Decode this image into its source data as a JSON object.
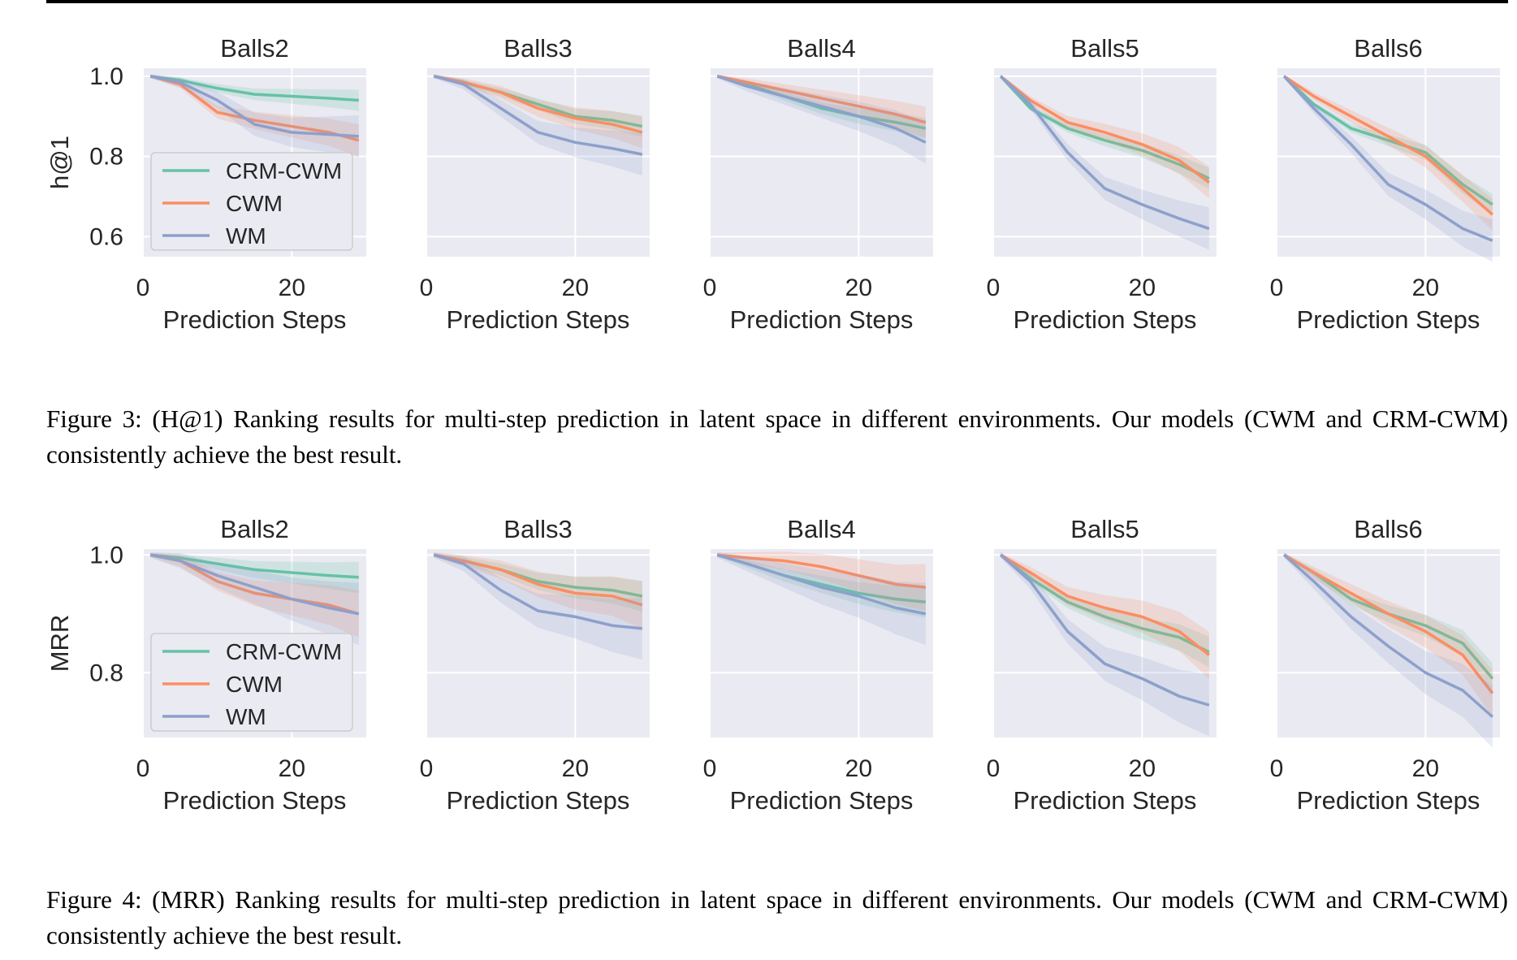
{
  "figures": [
    {
      "ylabel": "h@1",
      "caption": "Figure 3: (H@1) Ranking results for multi-step prediction in latent space in different environments. Our models (CWM and CRM-CWM) consistently achieve the best result."
    },
    {
      "ylabel": "MRR",
      "caption": "Figure 4: (MRR) Ranking results for multi-step prediction in latent space in different environments. Our models (CWM and CRM-CWM) consistently achieve the best result."
    }
  ],
  "colors": {
    "CRM-CWM": "#66c2a5",
    "CWM": "#fc8d62",
    "WM": "#8da0cb",
    "panel_bg": "#eaeaf2"
  },
  "chart_data": [
    {
      "type": "line",
      "ylabel": "h@1",
      "xlabel": "Prediction Steps",
      "xticks": [
        0,
        20
      ],
      "yticks": [
        0.6,
        0.8,
        1.0
      ],
      "xlim": [
        0,
        30
      ],
      "ylim": [
        0.55,
        1.02
      ],
      "grid": true,
      "legend": {
        "placement": "lower-left",
        "panel": 0,
        "entries": [
          "CRM-CWM",
          "CWM",
          "WM"
        ]
      },
      "panels": [
        {
          "title": "Balls2",
          "x": [
            1,
            5,
            10,
            15,
            20,
            25,
            29
          ],
          "series": [
            {
              "name": "CRM-CWM",
              "values": [
                1.0,
                0.99,
                0.97,
                0.955,
                0.95,
                0.945,
                0.94
              ]
            },
            {
              "name": "CWM",
              "values": [
                1.0,
                0.98,
                0.91,
                0.89,
                0.875,
                0.86,
                0.84
              ]
            },
            {
              "name": "WM",
              "values": [
                1.0,
                0.985,
                0.94,
                0.88,
                0.86,
                0.855,
                0.85
              ]
            }
          ]
        },
        {
          "title": "Balls3",
          "x": [
            1,
            5,
            10,
            15,
            20,
            25,
            29
          ],
          "series": [
            {
              "name": "CRM-CWM",
              "values": [
                1.0,
                0.985,
                0.96,
                0.93,
                0.9,
                0.89,
                0.875
              ]
            },
            {
              "name": "CWM",
              "values": [
                1.0,
                0.985,
                0.96,
                0.92,
                0.895,
                0.88,
                0.86
              ]
            },
            {
              "name": "WM",
              "values": [
                1.0,
                0.98,
                0.92,
                0.86,
                0.835,
                0.82,
                0.805
              ]
            }
          ]
        },
        {
          "title": "Balls4",
          "x": [
            1,
            5,
            10,
            15,
            20,
            25,
            29
          ],
          "series": [
            {
              "name": "CRM-CWM",
              "values": [
                1.0,
                0.98,
                0.95,
                0.92,
                0.9,
                0.885,
                0.87
              ]
            },
            {
              "name": "CWM",
              "values": [
                1.0,
                0.985,
                0.965,
                0.945,
                0.925,
                0.905,
                0.885
              ]
            },
            {
              "name": "WM",
              "values": [
                1.0,
                0.975,
                0.95,
                0.925,
                0.9,
                0.87,
                0.835
              ]
            }
          ]
        },
        {
          "title": "Balls5",
          "x": [
            1,
            5,
            10,
            15,
            20,
            25,
            29
          ],
          "series": [
            {
              "name": "CRM-CWM",
              "values": [
                1.0,
                0.92,
                0.87,
                0.84,
                0.815,
                0.78,
                0.745
              ]
            },
            {
              "name": "CWM",
              "values": [
                1.0,
                0.94,
                0.885,
                0.86,
                0.83,
                0.79,
                0.735
              ]
            },
            {
              "name": "WM",
              "values": [
                1.0,
                0.93,
                0.81,
                0.72,
                0.68,
                0.645,
                0.62
              ]
            }
          ]
        },
        {
          "title": "Balls6",
          "x": [
            1,
            5,
            10,
            15,
            20,
            25,
            29
          ],
          "series": [
            {
              "name": "CRM-CWM",
              "values": [
                1.0,
                0.93,
                0.87,
                0.84,
                0.81,
                0.73,
                0.68
              ]
            },
            {
              "name": "CWM",
              "values": [
                1.0,
                0.95,
                0.9,
                0.85,
                0.8,
                0.72,
                0.655
              ]
            },
            {
              "name": "WM",
              "values": [
                1.0,
                0.92,
                0.83,
                0.73,
                0.68,
                0.62,
                0.59
              ]
            }
          ]
        }
      ]
    },
    {
      "type": "line",
      "ylabel": "MRR",
      "xlabel": "Prediction Steps",
      "xticks": [
        0,
        20
      ],
      "yticks": [
        0.8,
        1.0
      ],
      "xlim": [
        0,
        30
      ],
      "ylim": [
        0.69,
        1.01
      ],
      "grid": true,
      "legend": {
        "placement": "lower-left",
        "panel": 0,
        "entries": [
          "CRM-CWM",
          "CWM",
          "WM"
        ]
      },
      "panels": [
        {
          "title": "Balls2",
          "x": [
            1,
            5,
            10,
            15,
            20,
            25,
            29
          ],
          "series": [
            {
              "name": "CRM-CWM",
              "values": [
                1.0,
                0.995,
                0.985,
                0.975,
                0.97,
                0.965,
                0.962
              ]
            },
            {
              "name": "CWM",
              "values": [
                1.0,
                0.99,
                0.955,
                0.935,
                0.925,
                0.915,
                0.9
              ]
            },
            {
              "name": "WM",
              "values": [
                1.0,
                0.99,
                0.965,
                0.945,
                0.925,
                0.91,
                0.9
              ]
            }
          ]
        },
        {
          "title": "Balls3",
          "x": [
            1,
            5,
            10,
            15,
            20,
            25,
            29
          ],
          "series": [
            {
              "name": "CRM-CWM",
              "values": [
                1.0,
                0.99,
                0.975,
                0.955,
                0.945,
                0.94,
                0.93
              ]
            },
            {
              "name": "CWM",
              "values": [
                1.0,
                0.99,
                0.975,
                0.95,
                0.935,
                0.93,
                0.915
              ]
            },
            {
              "name": "WM",
              "values": [
                1.0,
                0.985,
                0.94,
                0.905,
                0.895,
                0.88,
                0.875
              ]
            }
          ]
        },
        {
          "title": "Balls4",
          "x": [
            1,
            5,
            10,
            15,
            20,
            25,
            29
          ],
          "series": [
            {
              "name": "CRM-CWM",
              "values": [
                1.0,
                0.985,
                0.965,
                0.95,
                0.935,
                0.925,
                0.92
              ]
            },
            {
              "name": "CWM",
              "values": [
                1.0,
                0.995,
                0.99,
                0.98,
                0.965,
                0.95,
                0.945
              ]
            },
            {
              "name": "WM",
              "values": [
                1.0,
                0.985,
                0.965,
                0.945,
                0.93,
                0.91,
                0.9
              ]
            }
          ]
        },
        {
          "title": "Balls5",
          "x": [
            1,
            5,
            10,
            15,
            20,
            25,
            29
          ],
          "series": [
            {
              "name": "CRM-CWM",
              "values": [
                1.0,
                0.96,
                0.92,
                0.895,
                0.875,
                0.86,
                0.835
              ]
            },
            {
              "name": "CWM",
              "values": [
                1.0,
                0.97,
                0.93,
                0.91,
                0.895,
                0.87,
                0.83
              ]
            },
            {
              "name": "WM",
              "values": [
                1.0,
                0.955,
                0.87,
                0.815,
                0.79,
                0.76,
                0.745
              ]
            }
          ]
        },
        {
          "title": "Balls6",
          "x": [
            1,
            5,
            10,
            15,
            20,
            25,
            29
          ],
          "series": [
            {
              "name": "CRM-CWM",
              "values": [
                1.0,
                0.97,
                0.925,
                0.9,
                0.88,
                0.85,
                0.79
              ]
            },
            {
              "name": "CWM",
              "values": [
                1.0,
                0.97,
                0.935,
                0.9,
                0.87,
                0.83,
                0.765
              ]
            },
            {
              "name": "WM",
              "values": [
                1.0,
                0.955,
                0.895,
                0.845,
                0.8,
                0.77,
                0.725
              ]
            }
          ]
        }
      ]
    }
  ]
}
